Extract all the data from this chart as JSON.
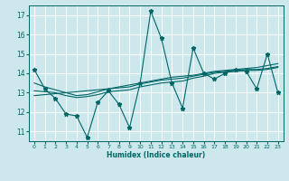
{
  "xlabel": "Humidex (Indice chaleur)",
  "ylabel": "",
  "xlim": [
    -0.5,
    23.5
  ],
  "ylim": [
    10.5,
    17.5
  ],
  "xticks": [
    0,
    1,
    2,
    3,
    4,
    5,
    6,
    7,
    8,
    9,
    10,
    11,
    12,
    13,
    14,
    15,
    16,
    17,
    18,
    19,
    20,
    21,
    22,
    23
  ],
  "yticks": [
    11,
    12,
    13,
    14,
    15,
    16,
    17
  ],
  "line_color": "#006666",
  "bg_color": "#cce8ec",
  "grid_color": "#ffffff",
  "zigzag_x": [
    0,
    1,
    2,
    3,
    4,
    5,
    6,
    7,
    8,
    9,
    10,
    11,
    12,
    13,
    14,
    15,
    16,
    17,
    18,
    19,
    20,
    21,
    22,
    23
  ],
  "zigzag_y": [
    14.2,
    13.2,
    12.7,
    11.9,
    11.8,
    10.7,
    12.5,
    13.1,
    12.4,
    11.2,
    13.5,
    17.2,
    15.8,
    13.5,
    12.2,
    15.3,
    14.0,
    13.7,
    14.0,
    14.2,
    14.1,
    13.2,
    15.0,
    13.0
  ],
  "trend1_x": [
    0,
    1,
    2,
    3,
    4,
    5,
    6,
    7,
    8,
    9,
    10,
    11,
    12,
    13,
    14,
    15,
    16,
    17,
    18,
    19,
    20,
    21,
    22,
    23
  ],
  "trend1_y": [
    12.85,
    12.9,
    12.95,
    13.0,
    13.05,
    13.1,
    13.15,
    13.2,
    13.3,
    13.4,
    13.5,
    13.6,
    13.7,
    13.8,
    13.85,
    13.9,
    14.0,
    14.1,
    14.15,
    14.2,
    14.25,
    14.3,
    14.4,
    14.5
  ],
  "trend2_x": [
    0,
    1,
    2,
    3,
    4,
    5,
    6,
    7,
    8,
    9,
    10,
    11,
    12,
    13,
    14,
    15,
    16,
    17,
    18,
    19,
    20,
    21,
    22,
    23
  ],
  "trend2_y": [
    13.1,
    13.05,
    13.0,
    12.85,
    12.75,
    12.8,
    12.9,
    13.05,
    13.1,
    13.15,
    13.3,
    13.4,
    13.5,
    13.55,
    13.6,
    13.75,
    13.85,
    14.0,
    14.05,
    14.1,
    14.15,
    14.15,
    14.2,
    14.3
  ],
  "trend3_x": [
    0,
    1,
    2,
    3,
    4,
    5,
    6,
    7,
    8,
    9,
    10,
    11,
    12,
    13,
    14,
    15,
    16,
    17,
    18,
    19,
    20,
    21,
    22,
    23
  ],
  "trend3_y": [
    13.5,
    13.3,
    13.15,
    13.0,
    12.85,
    12.9,
    13.05,
    13.2,
    13.25,
    13.3,
    13.45,
    13.55,
    13.65,
    13.7,
    13.75,
    13.85,
    13.95,
    14.05,
    14.1,
    14.15,
    14.2,
    14.2,
    14.25,
    14.35
  ],
  "figsize": [
    3.2,
    2.0
  ],
  "dpi": 100
}
